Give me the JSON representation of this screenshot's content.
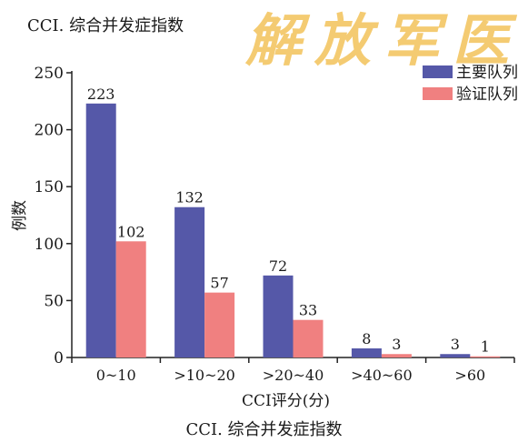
{
  "header": {
    "title": "CCI. 综合并发症指数"
  },
  "watermark": {
    "text": "解放军医"
  },
  "footer": {
    "caption": "CCI. 综合并发症指数"
  },
  "colors": {
    "series1": "#5558a8",
    "series2": "#f08080",
    "axis": "#222222"
  },
  "chart_data": {
    "type": "bar",
    "categories": [
      "0~10",
      ">10~20",
      ">20~40",
      ">40~60",
      ">60"
    ],
    "series": [
      {
        "name": "主要队列",
        "values": [
          223,
          132,
          72,
          8,
          3
        ]
      },
      {
        "name": "验证队列",
        "values": [
          102,
          57,
          33,
          3,
          1
        ]
      }
    ],
    "xlabel": "CCI评分(分)",
    "ylabel": "例数",
    "ylim": [
      0,
      250
    ],
    "yticks": [
      0,
      50,
      100,
      150,
      200,
      250
    ],
    "grid": false,
    "legend": "top-right",
    "data_labels": true
  }
}
